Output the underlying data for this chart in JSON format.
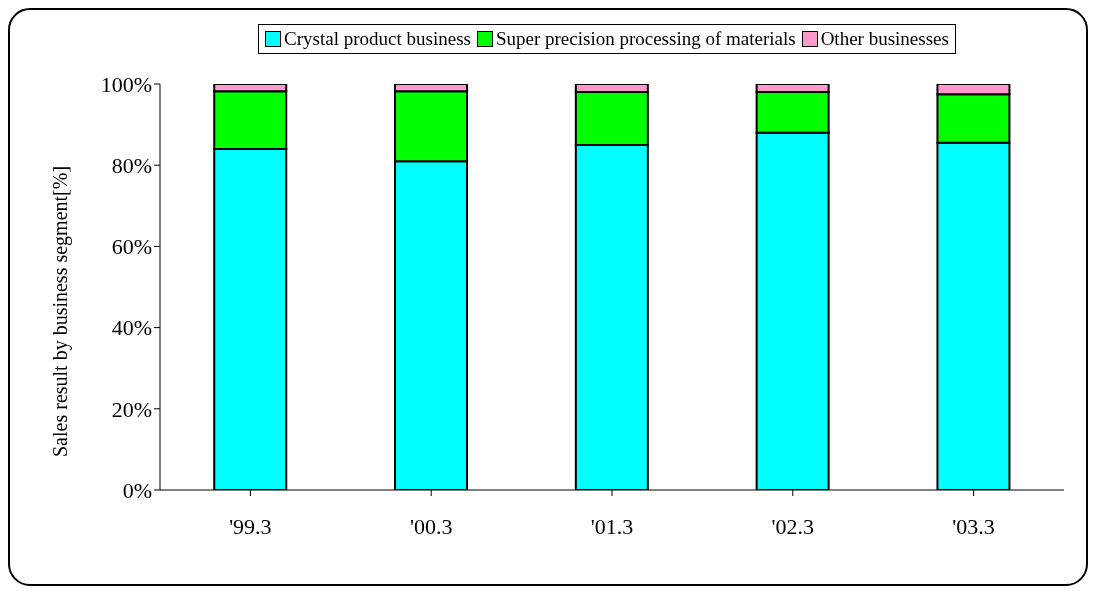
{
  "chart_data": {
    "type": "bar",
    "stacked": true,
    "ylabel": "Sales result by business segment[%]",
    "categories": [
      "'99.3",
      "'00.3",
      "'01.3",
      "'02.3",
      "'03.3"
    ],
    "series": [
      {
        "name": "Crystal product business",
        "color": "#00ffff",
        "values": [
          84,
          81,
          85,
          88,
          85.5
        ]
      },
      {
        "name": "Super precision processing of materials",
        "color": "#00ff00",
        "values": [
          14.2,
          17.2,
          13,
          10,
          12
        ]
      },
      {
        "name": "Other businesses",
        "color": "#ff99cc",
        "values": [
          1.8,
          1.8,
          2,
          2,
          2.5
        ]
      }
    ],
    "ylim": [
      0,
      100
    ],
    "yticks": [
      {
        "value": 0,
        "label": "0%"
      },
      {
        "value": 20,
        "label": "20%"
      },
      {
        "value": 40,
        "label": "40%"
      },
      {
        "value": 60,
        "label": "60%"
      },
      {
        "value": 80,
        "label": "80%"
      },
      {
        "value": 100,
        "label": "100%"
      }
    ],
    "grid": false,
    "legend": "top"
  }
}
